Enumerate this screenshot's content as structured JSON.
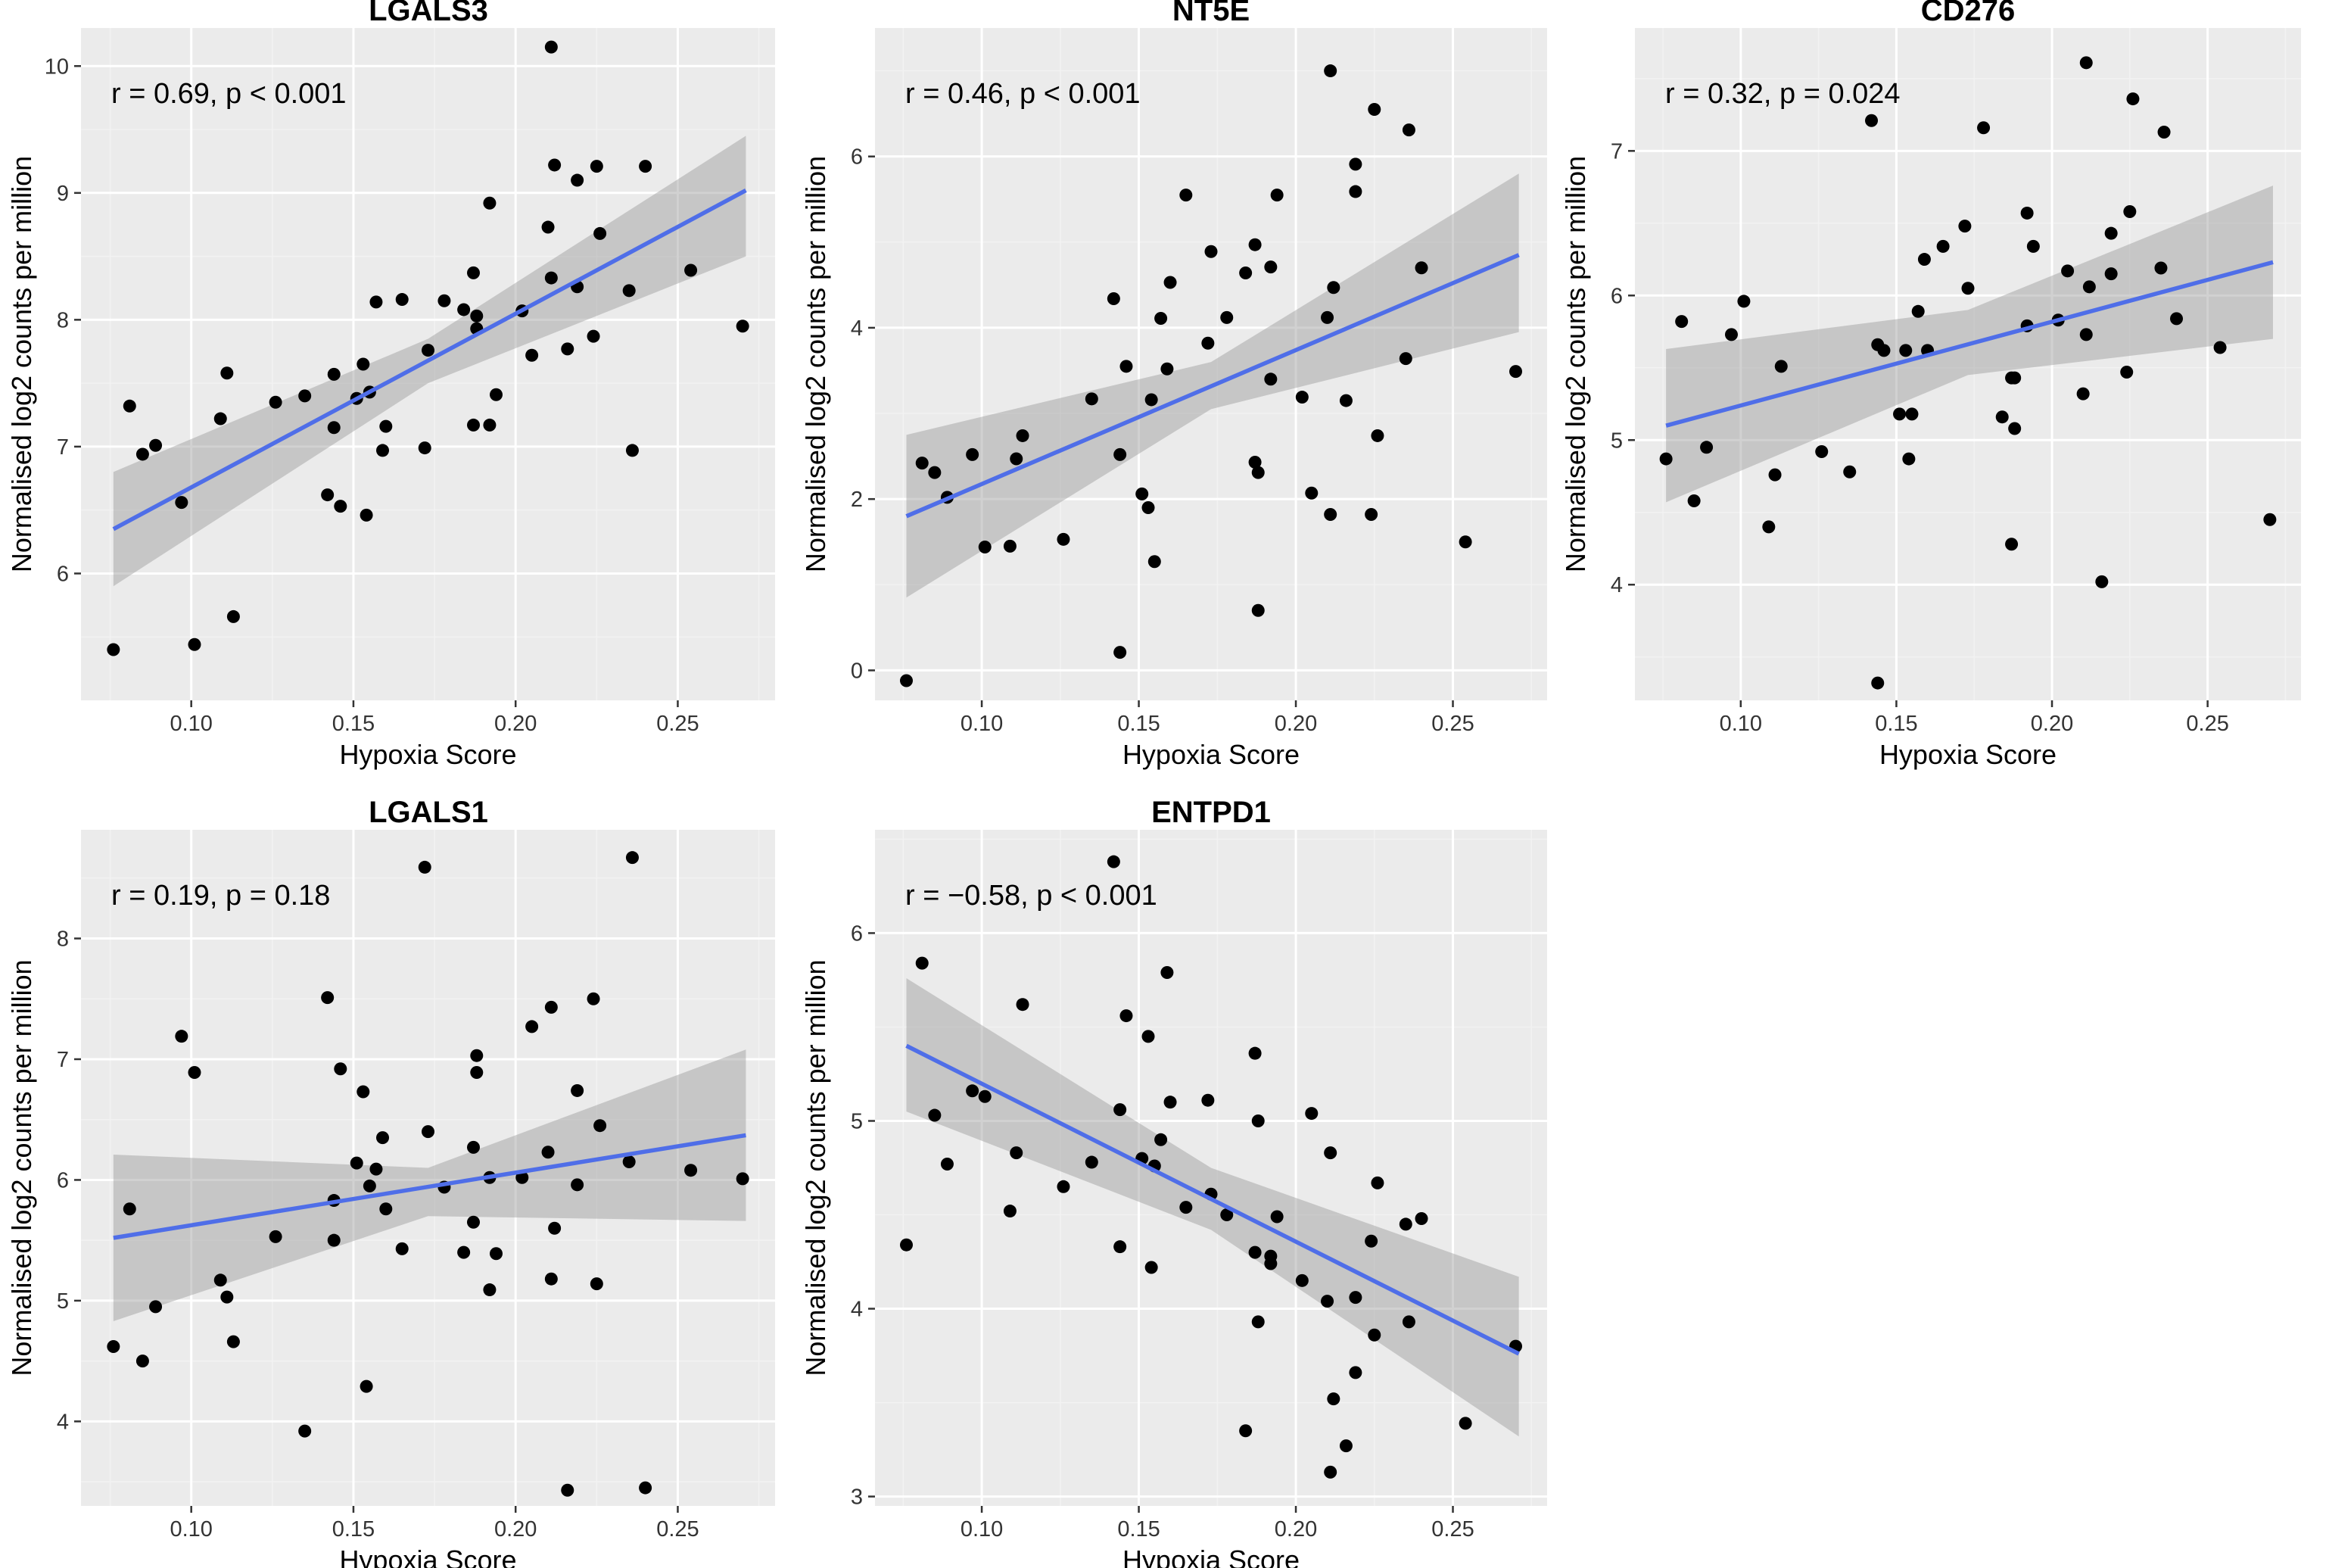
{
  "figure": {
    "xlabel": "Hypoxia Score",
    "ylabel": "Normalised log2 counts per million",
    "colors": {
      "panel_bg": "#ebebeb",
      "fit_line": "#4f6ee8",
      "ci_band": "#999999",
      "points": "#000000"
    }
  },
  "chart_data": [
    {
      "type": "scatter",
      "title": "LGALS3",
      "xlabel": "Hypoxia Score",
      "ylabel": "Normalised log2 counts per million",
      "annotation": "r = 0.69, p < 0.001",
      "xlim": [
        0.066,
        0.28
      ],
      "ylim": [
        5.0,
        10.3
      ],
      "xticks": [
        0.1,
        0.15,
        0.2,
        0.25
      ],
      "xtick_labels": [
        "0.10",
        "0.15",
        "0.20",
        "0.25"
      ],
      "yticks": [
        6,
        7,
        8,
        9,
        10
      ],
      "ytick_labels": [
        "6",
        "7",
        "8",
        "9",
        "10"
      ],
      "fit": {
        "x": [
          0.076,
          0.271
        ],
        "y": [
          6.35,
          9.02
        ]
      },
      "band": {
        "x": [
          0.076,
          0.173,
          0.271
        ],
        "lower": [
          5.9,
          7.5,
          8.5
        ],
        "upper": [
          6.8,
          7.85,
          9.45
        ]
      },
      "points": [
        [
          0.076,
          5.4
        ],
        [
          0.081,
          7.32
        ],
        [
          0.085,
          6.94
        ],
        [
          0.089,
          7.01
        ],
        [
          0.097,
          6.56
        ],
        [
          0.101,
          5.44
        ],
        [
          0.109,
          7.22
        ],
        [
          0.111,
          7.58
        ],
        [
          0.113,
          5.66
        ],
        [
          0.126,
          7.35
        ],
        [
          0.135,
          7.4
        ],
        [
          0.142,
          6.62
        ],
        [
          0.144,
          7.57
        ],
        [
          0.144,
          7.15
        ],
        [
          0.146,
          6.53
        ],
        [
          0.151,
          7.38
        ],
        [
          0.153,
          7.65
        ],
        [
          0.154,
          6.46
        ],
        [
          0.155,
          7.43
        ],
        [
          0.157,
          8.14
        ],
        [
          0.159,
          6.97
        ],
        [
          0.16,
          7.16
        ],
        [
          0.165,
          8.16
        ],
        [
          0.172,
          6.99
        ],
        [
          0.173,
          7.76
        ],
        [
          0.178,
          8.15
        ],
        [
          0.184,
          8.08
        ],
        [
          0.187,
          7.17
        ],
        [
          0.187,
          8.37
        ],
        [
          0.188,
          8.03
        ],
        [
          0.188,
          7.93
        ],
        [
          0.192,
          8.92
        ],
        [
          0.192,
          7.17
        ],
        [
          0.194,
          7.41
        ],
        [
          0.202,
          8.07
        ],
        [
          0.205,
          7.72
        ],
        [
          0.21,
          8.73
        ],
        [
          0.211,
          8.33
        ],
        [
          0.211,
          10.15
        ],
        [
          0.212,
          9.22
        ],
        [
          0.216,
          7.77
        ],
        [
          0.219,
          9.1
        ],
        [
          0.219,
          8.26
        ],
        [
          0.224,
          7.87
        ],
        [
          0.225,
          9.21
        ],
        [
          0.226,
          8.68
        ],
        [
          0.235,
          8.23
        ],
        [
          0.236,
          6.97
        ],
        [
          0.24,
          9.21
        ],
        [
          0.254,
          8.39
        ],
        [
          0.27,
          7.95
        ]
      ]
    },
    {
      "type": "scatter",
      "title": "NT5E",
      "xlabel": "Hypoxia Score",
      "ylabel": "Normalised log2 counts per million",
      "annotation": "r = 0.46, p < 0.001",
      "xlim": [
        0.066,
        0.28
      ],
      "ylim": [
        -0.35,
        7.5
      ],
      "xticks": [
        0.1,
        0.15,
        0.2,
        0.25
      ],
      "xtick_labels": [
        "0.10",
        "0.15",
        "0.20",
        "0.25"
      ],
      "yticks": [
        0,
        2,
        4,
        6
      ],
      "ytick_labels": [
        "0",
        "2",
        "4",
        "6"
      ],
      "fit": {
        "x": [
          0.076,
          0.271
        ],
        "y": [
          1.8,
          4.85
        ]
      },
      "band": {
        "x": [
          0.076,
          0.173,
          0.271
        ],
        "lower": [
          0.85,
          3.05,
          3.95
        ],
        "upper": [
          2.75,
          3.6,
          5.8
        ]
      },
      "points": [
        [
          0.076,
          -0.12
        ],
        [
          0.081,
          2.42
        ],
        [
          0.085,
          2.31
        ],
        [
          0.089,
          2.02
        ],
        [
          0.097,
          2.52
        ],
        [
          0.101,
          1.44
        ],
        [
          0.109,
          1.45
        ],
        [
          0.111,
          2.47
        ],
        [
          0.113,
          2.74
        ],
        [
          0.126,
          1.53
        ],
        [
          0.135,
          3.17
        ],
        [
          0.142,
          4.34
        ],
        [
          0.144,
          2.52
        ],
        [
          0.144,
          0.21
        ],
        [
          0.146,
          3.55
        ],
        [
          0.151,
          2.06
        ],
        [
          0.153,
          1.9
        ],
        [
          0.154,
          3.16
        ],
        [
          0.155,
          1.27
        ],
        [
          0.157,
          4.11
        ],
        [
          0.159,
          3.52
        ],
        [
          0.16,
          4.53
        ],
        [
          0.165,
          5.55
        ],
        [
          0.172,
          3.82
        ],
        [
          0.173,
          4.89
        ],
        [
          0.178,
          4.12
        ],
        [
          0.184,
          4.64
        ],
        [
          0.187,
          2.43
        ],
        [
          0.187,
          4.97
        ],
        [
          0.188,
          0.7
        ],
        [
          0.188,
          2.31
        ],
        [
          0.192,
          3.4
        ],
        [
          0.192,
          4.71
        ],
        [
          0.194,
          5.55
        ],
        [
          0.202,
          3.19
        ],
        [
          0.205,
          2.07
        ],
        [
          0.21,
          4.12
        ],
        [
          0.211,
          1.82
        ],
        [
          0.211,
          7.0
        ],
        [
          0.212,
          4.47
        ],
        [
          0.216,
          3.15
        ],
        [
          0.219,
          5.91
        ],
        [
          0.219,
          5.59
        ],
        [
          0.224,
          1.82
        ],
        [
          0.225,
          6.55
        ],
        [
          0.226,
          2.74
        ],
        [
          0.235,
          3.64
        ],
        [
          0.236,
          6.31
        ],
        [
          0.24,
          4.7
        ],
        [
          0.254,
          1.5
        ],
        [
          0.27,
          3.49
        ]
      ]
    },
    {
      "type": "scatter",
      "title": "CD276",
      "xlabel": "Hypoxia Score",
      "ylabel": "Normalised log2 counts per million",
      "annotation": "r = 0.32, p = 0.024",
      "xlim": [
        0.066,
        0.28
      ],
      "ylim": [
        3.2,
        7.85
      ],
      "xticks": [
        0.1,
        0.15,
        0.2,
        0.25
      ],
      "xtick_labels": [
        "0.10",
        "0.15",
        "0.20",
        "0.25"
      ],
      "yticks": [
        4,
        5,
        6,
        7
      ],
      "ytick_labels": [
        "4",
        "5",
        "6",
        "7"
      ],
      "fit": {
        "x": [
          0.076,
          0.271
        ],
        "y": [
          5.1,
          6.23
        ]
      },
      "band": {
        "x": [
          0.076,
          0.173,
          0.271
        ],
        "lower": [
          4.57,
          5.45,
          5.7
        ],
        "upper": [
          5.63,
          5.9,
          6.76
        ]
      },
      "points": [
        [
          0.076,
          4.87
        ],
        [
          0.081,
          5.82
        ],
        [
          0.085,
          4.58
        ],
        [
          0.089,
          4.95
        ],
        [
          0.097,
          5.73
        ],
        [
          0.101,
          5.96
        ],
        [
          0.109,
          4.4
        ],
        [
          0.111,
          4.76
        ],
        [
          0.113,
          5.51
        ],
        [
          0.126,
          4.92
        ],
        [
          0.135,
          4.78
        ],
        [
          0.142,
          7.21
        ],
        [
          0.144,
          5.66
        ],
        [
          0.144,
          3.32
        ],
        [
          0.146,
          5.62
        ],
        [
          0.151,
          5.18
        ],
        [
          0.153,
          5.62
        ],
        [
          0.154,
          4.87
        ],
        [
          0.155,
          5.18
        ],
        [
          0.157,
          5.89
        ],
        [
          0.159,
          6.25
        ],
        [
          0.16,
          5.62
        ],
        [
          0.165,
          6.34
        ],
        [
          0.172,
          6.48
        ],
        [
          0.173,
          6.05
        ],
        [
          0.178,
          7.16
        ],
        [
          0.184,
          5.16
        ],
        [
          0.187,
          5.43
        ],
        [
          0.187,
          4.28
        ],
        [
          0.188,
          5.08
        ],
        [
          0.188,
          5.43
        ],
        [
          0.192,
          5.79
        ],
        [
          0.192,
          6.57
        ],
        [
          0.194,
          6.34
        ],
        [
          0.202,
          5.83
        ],
        [
          0.205,
          6.17
        ],
        [
          0.21,
          5.32
        ],
        [
          0.211,
          5.73
        ],
        [
          0.211,
          7.61
        ],
        [
          0.212,
          6.06
        ],
        [
          0.216,
          4.02
        ],
        [
          0.219,
          6.15
        ],
        [
          0.219,
          6.43
        ],
        [
          0.224,
          5.47
        ],
        [
          0.225,
          6.58
        ],
        [
          0.226,
          7.36
        ],
        [
          0.235,
          6.19
        ],
        [
          0.236,
          7.13
        ],
        [
          0.24,
          5.84
        ],
        [
          0.254,
          5.64
        ],
        [
          0.27,
          4.45
        ]
      ]
    },
    {
      "type": "scatter",
      "title": "LGALS1",
      "xlabel": "Hypoxia Score",
      "ylabel": "Normalised log2 counts per million",
      "annotation": "r = 0.19, p = 0.18",
      "xlim": [
        0.066,
        0.28
      ],
      "ylim": [
        3.3,
        8.9
      ],
      "xticks": [
        0.1,
        0.15,
        0.2,
        0.25
      ],
      "xtick_labels": [
        "0.10",
        "0.15",
        "0.20",
        "0.25"
      ],
      "yticks": [
        4,
        5,
        6,
        7,
        8
      ],
      "ytick_labels": [
        "4",
        "5",
        "6",
        "7",
        "8"
      ],
      "fit": {
        "x": [
          0.076,
          0.271
        ],
        "y": [
          5.52,
          6.37
        ]
      },
      "band": {
        "x": [
          0.076,
          0.173,
          0.271
        ],
        "lower": [
          4.83,
          5.7,
          5.66
        ],
        "upper": [
          6.21,
          6.1,
          7.08
        ]
      },
      "points": [
        [
          0.076,
          4.62
        ],
        [
          0.081,
          5.76
        ],
        [
          0.085,
          4.5
        ],
        [
          0.089,
          4.95
        ],
        [
          0.097,
          7.19
        ],
        [
          0.101,
          6.89
        ],
        [
          0.109,
          5.17
        ],
        [
          0.111,
          5.03
        ],
        [
          0.113,
          4.66
        ],
        [
          0.126,
          5.53
        ],
        [
          0.135,
          3.92
        ],
        [
          0.142,
          7.51
        ],
        [
          0.144,
          5.83
        ],
        [
          0.144,
          5.5
        ],
        [
          0.146,
          6.92
        ],
        [
          0.151,
          6.14
        ],
        [
          0.153,
          6.73
        ],
        [
          0.154,
          4.29
        ],
        [
          0.155,
          5.95
        ],
        [
          0.157,
          6.09
        ],
        [
          0.159,
          6.35
        ],
        [
          0.16,
          5.76
        ],
        [
          0.165,
          5.43
        ],
        [
          0.172,
          8.59
        ],
        [
          0.173,
          6.4
        ],
        [
          0.178,
          5.94
        ],
        [
          0.184,
          5.4
        ],
        [
          0.187,
          6.27
        ],
        [
          0.187,
          5.65
        ],
        [
          0.188,
          7.03
        ],
        [
          0.188,
          6.89
        ],
        [
          0.192,
          5.09
        ],
        [
          0.192,
          6.02
        ],
        [
          0.194,
          5.39
        ],
        [
          0.202,
          6.02
        ],
        [
          0.205,
          7.27
        ],
        [
          0.21,
          6.23
        ],
        [
          0.211,
          5.18
        ],
        [
          0.211,
          7.43
        ],
        [
          0.212,
          5.6
        ],
        [
          0.216,
          3.43
        ],
        [
          0.219,
          5.96
        ],
        [
          0.219,
          6.74
        ],
        [
          0.224,
          7.5
        ],
        [
          0.225,
          5.14
        ],
        [
          0.226,
          6.45
        ],
        [
          0.235,
          6.15
        ],
        [
          0.236,
          8.67
        ],
        [
          0.24,
          3.45
        ],
        [
          0.254,
          6.08
        ],
        [
          0.27,
          6.01
        ]
      ]
    },
    {
      "type": "scatter",
      "title": "ENTPD1",
      "xlabel": "Hypoxia Score",
      "ylabel": "Normalised log2 counts per million",
      "annotation": "r = −0.58, p < 0.001",
      "xlim": [
        0.066,
        0.28
      ],
      "ylim": [
        2.95,
        6.55
      ],
      "xticks": [
        0.1,
        0.15,
        0.2,
        0.25
      ],
      "xtick_labels": [
        "0.10",
        "0.15",
        "0.20",
        "0.25"
      ],
      "yticks": [
        3,
        4,
        5,
        6
      ],
      "ytick_labels": [
        "3",
        "4",
        "5",
        "6"
      ],
      "fit": {
        "x": [
          0.076,
          0.271
        ],
        "y": [
          5.4,
          3.76
        ]
      },
      "band": {
        "x": [
          0.076,
          0.173,
          0.271
        ],
        "lower": [
          5.05,
          4.42,
          3.32
        ],
        "upper": [
          5.76,
          4.75,
          4.17
        ]
      },
      "points": [
        [
          0.076,
          4.34
        ],
        [
          0.081,
          5.84
        ],
        [
          0.085,
          5.03
        ],
        [
          0.089,
          4.77
        ],
        [
          0.097,
          5.16
        ],
        [
          0.101,
          5.13
        ],
        [
          0.109,
          4.52
        ],
        [
          0.111,
          4.83
        ],
        [
          0.113,
          5.62
        ],
        [
          0.126,
          4.65
        ],
        [
          0.135,
          4.78
        ],
        [
          0.142,
          6.38
        ],
        [
          0.144,
          5.06
        ],
        [
          0.144,
          4.33
        ],
        [
          0.146,
          5.56
        ],
        [
          0.151,
          4.8
        ],
        [
          0.153,
          5.45
        ],
        [
          0.154,
          4.22
        ],
        [
          0.155,
          4.76
        ],
        [
          0.157,
          4.9
        ],
        [
          0.159,
          5.79
        ],
        [
          0.16,
          5.1
        ],
        [
          0.165,
          4.54
        ],
        [
          0.172,
          5.11
        ],
        [
          0.173,
          4.61
        ],
        [
          0.178,
          4.5
        ],
        [
          0.184,
          3.35
        ],
        [
          0.187,
          5.36
        ],
        [
          0.187,
          4.3
        ],
        [
          0.188,
          3.93
        ],
        [
          0.188,
          5.0
        ],
        [
          0.192,
          4.24
        ],
        [
          0.192,
          4.28
        ],
        [
          0.194,
          4.49
        ],
        [
          0.202,
          4.15
        ],
        [
          0.205,
          5.04
        ],
        [
          0.21,
          4.04
        ],
        [
          0.211,
          3.13
        ],
        [
          0.211,
          4.83
        ],
        [
          0.212,
          3.52
        ],
        [
          0.216,
          3.27
        ],
        [
          0.219,
          4.06
        ],
        [
          0.219,
          3.66
        ],
        [
          0.224,
          4.36
        ],
        [
          0.225,
          3.86
        ],
        [
          0.226,
          4.67
        ],
        [
          0.235,
          4.45
        ],
        [
          0.236,
          3.93
        ],
        [
          0.24,
          4.48
        ],
        [
          0.254,
          3.39
        ],
        [
          0.27,
          3.8
        ]
      ]
    }
  ]
}
